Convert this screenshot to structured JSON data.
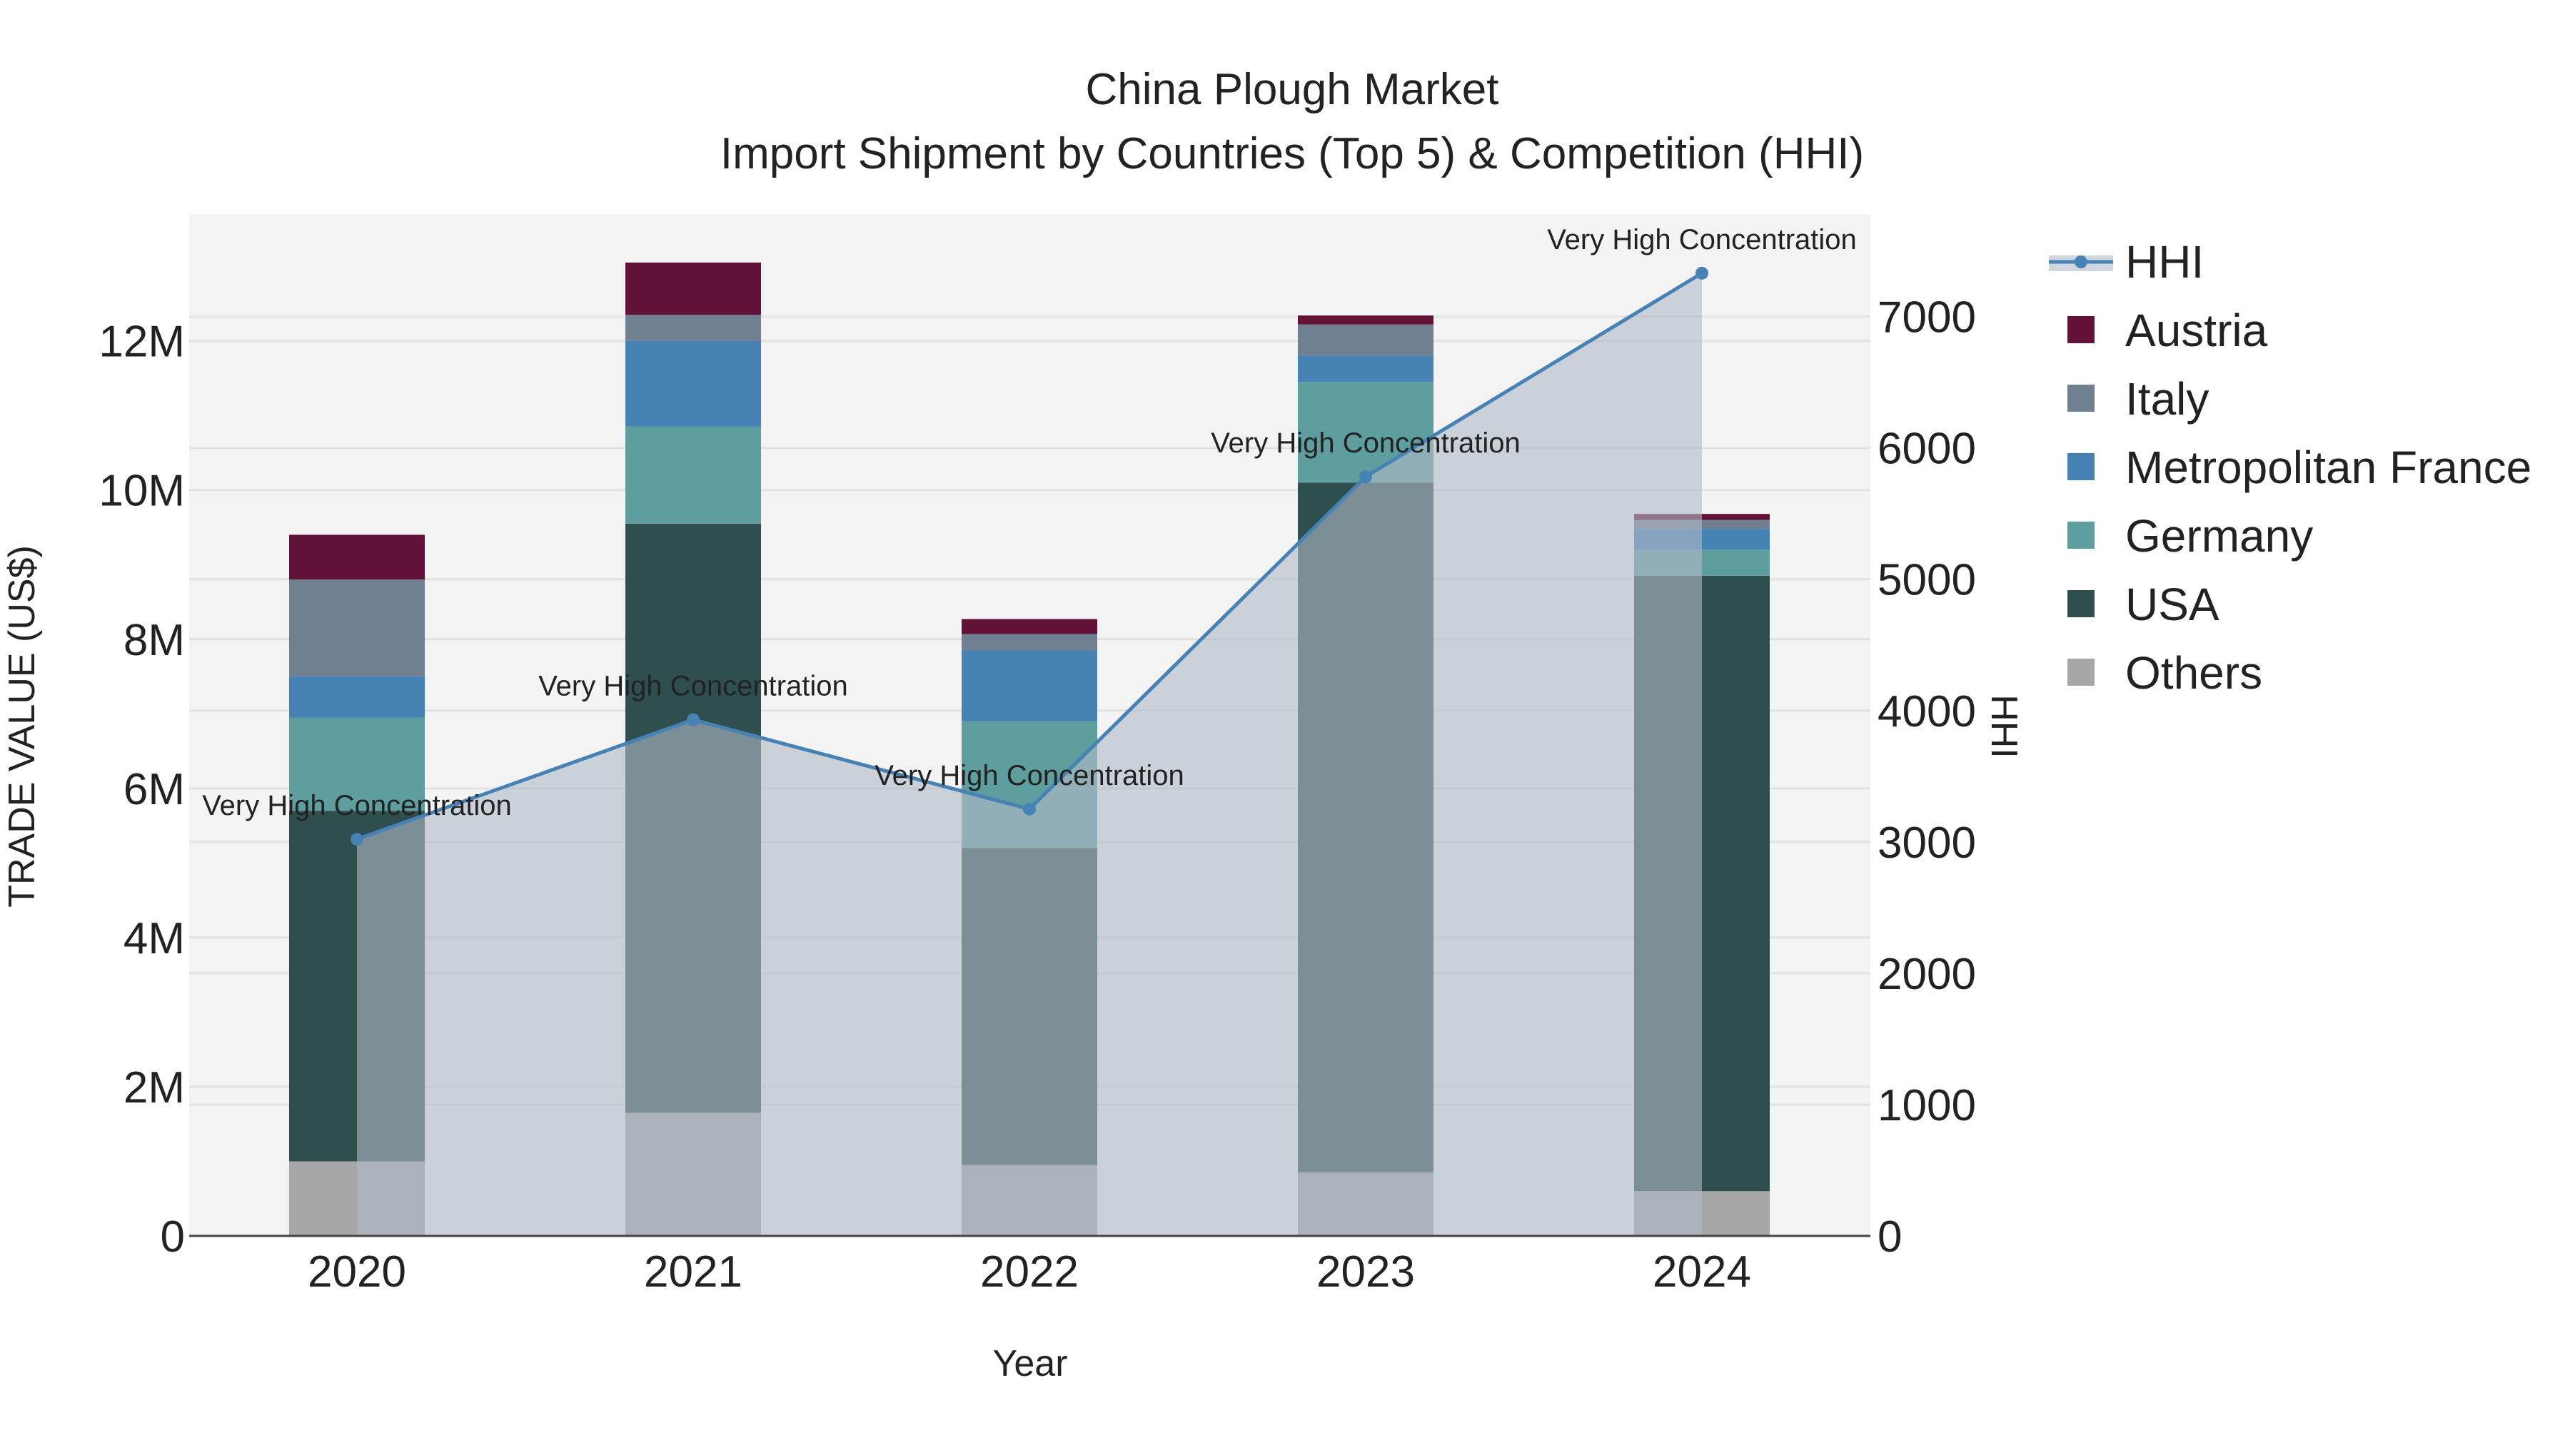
{
  "chart_data": {
    "type": "bar",
    "title": "China Plough Market",
    "subtitle": "Import Shipment by Countries (Top 5) & Competition (HHI)",
    "xlabel": "Year",
    "ylabel": "TRADE VALUE (US$)",
    "y2label": "HHI",
    "categories": [
      "2020",
      "2021",
      "2022",
      "2023",
      "2024"
    ],
    "ylim": [
      0,
      13700000
    ],
    "y2lim": [
      0,
      7780
    ],
    "yticks": [
      {
        "value": 0,
        "label": "0"
      },
      {
        "value": 2000000,
        "label": "2M"
      },
      {
        "value": 4000000,
        "label": "4M"
      },
      {
        "value": 6000000,
        "label": "6M"
      },
      {
        "value": 8000000,
        "label": "8M"
      },
      {
        "value": 10000000,
        "label": "10M"
      },
      {
        "value": 12000000,
        "label": "12M"
      }
    ],
    "y2ticks": [
      {
        "value": 0,
        "label": "0"
      },
      {
        "value": 1000,
        "label": "1000"
      },
      {
        "value": 2000,
        "label": "2000"
      },
      {
        "value": 3000,
        "label": "3000"
      },
      {
        "value": 4000,
        "label": "4000"
      },
      {
        "value": 5000,
        "label": "5000"
      },
      {
        "value": 6000,
        "label": "6000"
      },
      {
        "value": 7000,
        "label": "7000"
      }
    ],
    "series": [
      {
        "name": "Others",
        "color": "#a6a6a6",
        "values": [
          1000000,
          1650000,
          950000,
          850000,
          600000
        ]
      },
      {
        "name": "USA",
        "color": "#2f4f4f",
        "values": [
          4700000,
          7900000,
          4250000,
          9250000,
          8250000
        ]
      },
      {
        "name": "Germany",
        "color": "#5f9e9e",
        "values": [
          1250000,
          1300000,
          1700000,
          1350000,
          350000
        ]
      },
      {
        "name": "Metropolitan France",
        "color": "#4682b4",
        "values": [
          550000,
          1150000,
          950000,
          350000,
          280000
        ]
      },
      {
        "name": "Italy",
        "color": "#708090",
        "values": [
          1300000,
          350000,
          220000,
          420000,
          120000
        ]
      },
      {
        "name": "Austria",
        "color": "#621236",
        "values": [
          600000,
          700000,
          200000,
          120000,
          80000
        ]
      }
    ],
    "hhi": {
      "name": "HHI",
      "color": "#4682b4",
      "fill": "rgba(176,186,200,0.6)",
      "values": [
        3020,
        3930,
        3250,
        5780,
        7330
      ],
      "annotations": [
        "Very High Concentration",
        "Very High Concentration",
        "Very High Concentration",
        "Very High Concentration",
        "Very High Concentration"
      ]
    },
    "legend": [
      "HHI",
      "Austria",
      "Italy",
      "Metropolitan France",
      "Germany",
      "USA",
      "Others"
    ],
    "legend_position": "right",
    "grid": true,
    "plot_bg": "#f3f3f3"
  }
}
